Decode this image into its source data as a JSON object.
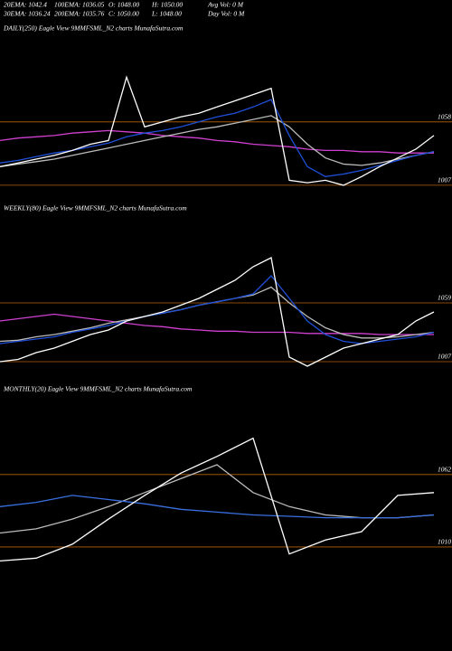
{
  "header": {
    "lines": [
      [
        "20EMA: 1042.4",
        "100EMA: 1036.05",
        "O: 1048.00",
        "H: 1050.00",
        "Avg Vol: 0  M"
      ],
      [
        "30EMA: 1036.24",
        "200EMA: 1035.76",
        "C: 1050.00",
        "L: 1048.00",
        "Day Vol: 0  M"
      ]
    ]
  },
  "chart_data": [
    {
      "type": "line",
      "title": "DAILY(250) Eagle   View  9MMFSML_N2  charts MunafaSutra.com",
      "categories": [
        null,
        null,
        null,
        null,
        null,
        null,
        null,
        null,
        null,
        null,
        null,
        null,
        null,
        null,
        null,
        null,
        null,
        null,
        null,
        null,
        null,
        null,
        null,
        null,
        null
      ],
      "ylim": [
        996,
        1127
      ],
      "yticks": [
        1007,
        1058
      ],
      "grid": true,
      "grid_color": "#b8620a",
      "series": [
        {
          "color": "#d040d0",
          "values": [
            1043,
            1045,
            1046,
            1047,
            1049,
            1050,
            1051,
            1050,
            1049,
            1047,
            1046,
            1045,
            1043,
            1042,
            1040,
            1039,
            1038,
            1036,
            1035,
            1035,
            1034,
            1034,
            1033,
            1033,
            1033
          ]
        },
        {
          "color": "#bbbbbb",
          "values": [
            1022,
            1024,
            1026,
            1028,
            1031,
            1034,
            1037,
            1040,
            1043,
            1046,
            1049,
            1052,
            1054,
            1057,
            1060,
            1063,
            1054,
            1040,
            1029,
            1024,
            1023,
            1025,
            1028,
            1031,
            1034
          ]
        },
        {
          "color": "#1f4fd8",
          "values": [
            1025,
            1027,
            1030,
            1033,
            1035,
            1038,
            1041,
            1046,
            1049,
            1051,
            1054,
            1058,
            1062,
            1065,
            1070,
            1076,
            1047,
            1022,
            1014,
            1016,
            1019,
            1023,
            1027,
            1031,
            1034
          ]
        },
        {
          "color": "#ffffff",
          "values": [
            1022,
            1025,
            1028,
            1031,
            1035,
            1040,
            1043,
            1094,
            1054,
            1058,
            1062,
            1065,
            1070,
            1075,
            1080,
            1085,
            1011,
            1009,
            1011,
            1007,
            1014,
            1022,
            1029,
            1036,
            1047
          ]
        }
      ]
    },
    {
      "type": "line",
      "title": "WEEKLY(80) Eagle   View  9MMFSML_N2  charts MunafaSutra.com",
      "categories": [
        null,
        null,
        null,
        null,
        null,
        null,
        null,
        null,
        null,
        null,
        null,
        null,
        null,
        null,
        null,
        null,
        null,
        null,
        null,
        null,
        null,
        null,
        null,
        null,
        null
      ],
      "ylim": [
        995,
        1135
      ],
      "yticks": [
        1007,
        1059
      ],
      "grid": true,
      "grid_color": "#b8620a",
      "series": [
        {
          "color": "#d040d0",
          "values": [
            1043,
            1045,
            1047,
            1049,
            1047,
            1045,
            1043,
            1041,
            1039,
            1038,
            1036,
            1035,
            1034,
            1034,
            1033,
            1033,
            1033,
            1032,
            1032,
            1032,
            1032,
            1031,
            1031,
            1031,
            1031
          ]
        },
        {
          "color": "#bbbbbb",
          "values": [
            1025,
            1026,
            1029,
            1031,
            1034,
            1037,
            1041,
            1044,
            1047,
            1050,
            1053,
            1057,
            1060,
            1063,
            1066,
            1073,
            1059,
            1047,
            1037,
            1031,
            1028,
            1028,
            1029,
            1031,
            1033
          ]
        },
        {
          "color": "#1f4fd8",
          "values": [
            1023,
            1025,
            1027,
            1029,
            1033,
            1036,
            1039,
            1043,
            1047,
            1050,
            1053,
            1057,
            1060,
            1063,
            1067,
            1083,
            1063,
            1043,
            1031,
            1025,
            1023,
            1025,
            1027,
            1029,
            1033
          ]
        },
        {
          "color": "#ffffff",
          "values": [
            1007,
            1009,
            1015,
            1019,
            1025,
            1031,
            1035,
            1043,
            1047,
            1051,
            1057,
            1063,
            1071,
            1079,
            1091,
            1099,
            1011,
            1003,
            1011,
            1019,
            1023,
            1027,
            1031,
            1043,
            1051
          ]
        }
      ]
    },
    {
      "type": "line",
      "title": "MONTHLY(20) Eagle   View  9MMFSML_N2  charts MunafaSutra.com",
      "categories": [
        null,
        null,
        null,
        null,
        null,
        null,
        null,
        null,
        null,
        null,
        null,
        null,
        null
      ],
      "ylim": [
        997,
        1117
      ],
      "yticks": [
        1010,
        1062
      ],
      "grid": true,
      "grid_color": "#b8620a",
      "series": [
        {
          "color": "#bbbbbb",
          "values": [
            1020,
            1023,
            1030,
            1039,
            1049,
            1059,
            1069,
            1049,
            1039,
            1033,
            1031,
            1031,
            1033
          ]
        },
        {
          "color": "#3a6fe0",
          "values": [
            1039,
            1042,
            1047,
            1044,
            1041,
            1037,
            1035,
            1033,
            1032,
            1031,
            1031,
            1031,
            1033
          ]
        },
        {
          "color": "#ffffff",
          "values": [
            1000,
            1002,
            1012,
            1030,
            1047,
            1063,
            1075,
            1088,
            1005,
            1015,
            1021,
            1047,
            1049
          ]
        }
      ]
    }
  ]
}
